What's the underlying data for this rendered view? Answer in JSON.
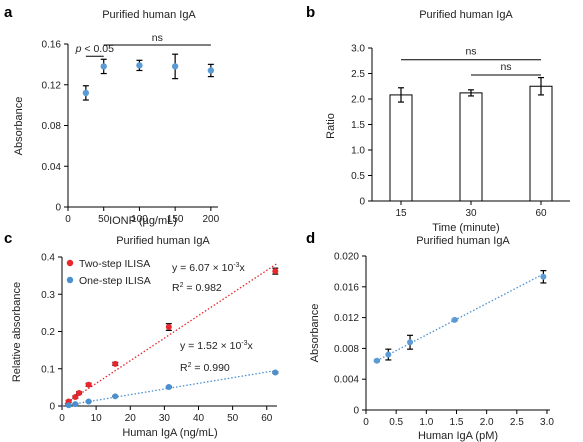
{
  "chart_data": [
    {
      "panel": "a",
      "type": "scatter",
      "title": "Purified human IgA",
      "xlabel": "IONP (µg/mL)",
      "ylabel": "Absorbance",
      "x_ticks": [
        "0",
        "50",
        "100",
        "150",
        "200"
      ],
      "y_ticks": [
        "0",
        "0.04",
        "0.08",
        "0.12",
        "0.16"
      ],
      "xlim": [
        0,
        210
      ],
      "ylim": [
        0,
        0.16
      ],
      "points": [
        {
          "x": 25,
          "y": 0.112,
          "err": 0.007
        },
        {
          "x": 50,
          "y": 0.138,
          "err": 0.007
        },
        {
          "x": 100,
          "y": 0.139,
          "err": 0.005
        },
        {
          "x": 150,
          "y": 0.138,
          "err": 0.012
        },
        {
          "x": 200,
          "y": 0.134,
          "err": 0.006
        }
      ],
      "annotations": [
        {
          "label_prefix": "p",
          "label": " < 0.05",
          "from": 25,
          "to": 50,
          "y": 0.148
        },
        {
          "label": "ns",
          "from": 50,
          "to": 200,
          "y": 0.159
        }
      ]
    },
    {
      "panel": "b",
      "type": "bar",
      "title": "Purified human IgA",
      "xlabel": "Time (minute)",
      "ylabel": "Ratio",
      "categories": [
        "15",
        "30",
        "60"
      ],
      "values": [
        2.08,
        2.12,
        2.25
      ],
      "errors": [
        0.14,
        0.06,
        0.17
      ],
      "y_ticks": [
        "0",
        "0.5",
        "1.0",
        "1.5",
        "2.0",
        "2.5",
        "3.0"
      ],
      "ylim": [
        0,
        3.0
      ],
      "annotations": [
        {
          "label": "ns",
          "from": 0,
          "to": 2,
          "y": 2.77
        },
        {
          "label": "ns",
          "from": 1,
          "to": 2,
          "y": 2.47
        }
      ]
    },
    {
      "panel": "c",
      "type": "scatter",
      "title": "Purified human IgA",
      "xlabel": "Human IgA (ng/mL)",
      "ylabel": "Relative absorbance",
      "x_ticks": [
        "0",
        "10",
        "20",
        "30",
        "40",
        "50",
        "60"
      ],
      "y_ticks": [
        "0",
        "0.1",
        "0.2",
        "0.3",
        "0.4"
      ],
      "xlim": [
        0,
        63
      ],
      "ylim": [
        0,
        0.4
      ],
      "series": [
        {
          "name": "Two-step ILISA",
          "color": "#e8262b",
          "fit_slope": 0.00607,
          "equation_prefix": "y = 6.07 × 10",
          "equation_exp": "-3",
          "equation_suffix": "x",
          "r2_value": " = 0.982",
          "points": [
            {
              "x": 1.95,
              "y": 0.012
            },
            {
              "x": 3.9,
              "y": 0.024
            },
            {
              "x": 5,
              "y": 0.035
            },
            {
              "x": 7.8,
              "y": 0.057
            },
            {
              "x": 15.6,
              "y": 0.113
            },
            {
              "x": 31.3,
              "y": 0.212
            },
            {
              "x": 62.5,
              "y": 0.362
            }
          ],
          "errors": [
            0.003,
            0.003,
            0.003,
            0.004,
            0.004,
            0.009,
            0.008
          ]
        },
        {
          "name": "One-step ILISA",
          "color": "#4a90d0",
          "fit_slope": 0.00152,
          "equation_prefix": "y = 1.52 × 10",
          "equation_exp": "-3",
          "equation_suffix": "x",
          "r2_value": " = 0.990",
          "points": [
            {
              "x": 1.95,
              "y": 0.002
            },
            {
              "x": 3.9,
              "y": 0.005
            },
            {
              "x": 7.8,
              "y": 0.012
            },
            {
              "x": 15.6,
              "y": 0.026
            },
            {
              "x": 31.3,
              "y": 0.051
            },
            {
              "x": 62.5,
              "y": 0.09
            }
          ],
          "errors": [
            0.001,
            0.001,
            0.001,
            0.001,
            0.002,
            0.002
          ]
        }
      ],
      "r2_label": "R",
      "r2_exp": "2"
    },
    {
      "panel": "d",
      "type": "scatter",
      "title": "Purified human IgA",
      "xlabel": "Human IgA (pM)",
      "ylabel": "Absorbance",
      "x_ticks": [
        "0",
        "0.5",
        "1.0",
        "1.5",
        "2.0",
        "2.5",
        "3.0"
      ],
      "y_ticks": [
        "0",
        "0.004",
        "0.008",
        "0.012",
        "0.016",
        "0.020"
      ],
      "xlim": [
        0,
        3.05
      ],
      "ylim": [
        0,
        0.02
      ],
      "fit": {
        "x0": 0.18,
        "y0": 0.0064,
        "x1": 2.95,
        "y1": 0.0177
      },
      "points": [
        {
          "x": 0.18,
          "y": 0.0064,
          "err": 0.0001
        },
        {
          "x": 0.37,
          "y": 0.0072,
          "err": 0.0007
        },
        {
          "x": 0.73,
          "y": 0.0088,
          "err": 0.0009
        },
        {
          "x": 1.47,
          "y": 0.0117,
          "err": 0.0001
        },
        {
          "x": 2.94,
          "y": 0.0173,
          "err": 0.0008
        }
      ]
    }
  ],
  "panel_labels": [
    "a",
    "b",
    "c",
    "d"
  ],
  "colors": {
    "marker": "#5b9bd5",
    "red": "#e8262b",
    "blue": "#4a90d0"
  }
}
